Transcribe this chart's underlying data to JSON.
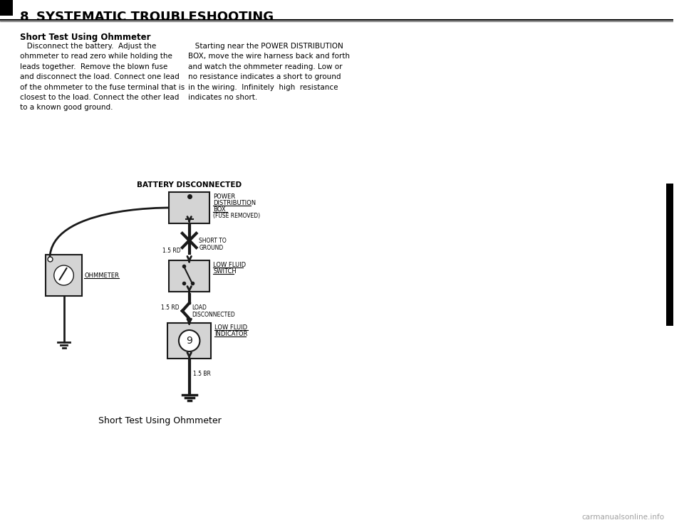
{
  "title_number": "8",
  "title_text": "SYSTEMATIC TROUBLESHOOTING",
  "subtitle": "Short Test Using Ohmmeter",
  "body_text_left": "   Disconnect the battery.  Adjust the\nohmmeter to read zero while holding the\nleads together.  Remove the blown fuse\nand disconnect the load. Connect one lead\nof the ohmmeter to the fuse terminal that is\nclosest to the load. Connect the other lead\nto a known good ground.",
  "body_text_right": "   Starting near the POWER DISTRIBUTION\nBOX, move the wire harness back and forth\nand watch the ohmmeter reading. Low or\nno resistance indicates a short to ground\nin the wiring.  Infinitely  high  resistance\nindicates no short.",
  "diagram_title": "BATTERY DISCONNECTED",
  "box1_label1": "POWER",
  "box1_label2": "DISTRIBUTION",
  "box1_label3": "BOX",
  "box1_label4": "(FUSE REMOVED)",
  "wire_label1": "SHORT TO\nGROUND",
  "wire_label2": "1.5 RD",
  "box2_label1": "LOW FLUID",
  "box2_label2": "SWITCH",
  "ohm_label": "OHMMETER",
  "wire_label3": "1.5 RD",
  "wire_label4": "LOAD\nDISCONNECTED",
  "box3_label1": "LOW FLUID",
  "box3_label2": "INDICATOR",
  "wire_label5": "1.5 BR",
  "caption": "Short Test Using Ohmmeter",
  "watermark": "carmanualsonline.info",
  "bg_color": "#ffffff",
  "text_color": "#000000",
  "line_color": "#1a1a1a"
}
